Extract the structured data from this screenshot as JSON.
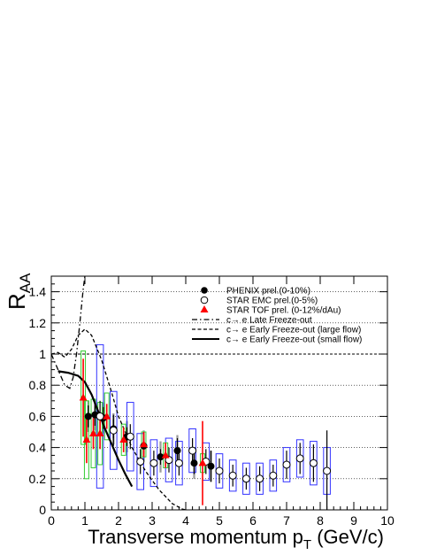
{
  "chart_data": {
    "type": "scatter",
    "title": "",
    "xlabel_main": "Transverse momentum p",
    "xlabel_sub": "T",
    "xlabel_unit": " (GeV/c)",
    "ylabel_main": "R",
    "ylabel_sub": "AA",
    "xlim": [
      0,
      10
    ],
    "ylim": [
      0,
      1.5
    ],
    "x_ticks": [
      "0",
      "1",
      "2",
      "3",
      "4",
      "5",
      "6",
      "7",
      "8",
      "9",
      "10"
    ],
    "y_ticks": [
      "0",
      "0.2",
      "0.4",
      "0.6",
      "0.8",
      "1",
      "1.2",
      "1.4"
    ],
    "legend_position": "top-right",
    "legend": [
      {
        "label": "PHENIX prel.(0-10%)",
        "marker": "filled-circle"
      },
      {
        "label": "STAR EMC prel.(0-5%)",
        "marker": "open-circle"
      },
      {
        "label": "STAR TOF prel. (0-12%/dAu)",
        "marker": "red-triangle"
      },
      {
        "label": "c→ e Late Freeze-out",
        "marker": "dash-dot-line"
      },
      {
        "label": "c→ e Early Freeze-out (large flow)",
        "marker": "dashed-line"
      },
      {
        "label": "c→ e Early Freeze-out (small flow)",
        "marker": "solid-line"
      }
    ],
    "series": [
      {
        "name": "PHENIX prel.(0-10%)",
        "color": "#000000",
        "points": [
          {
            "x": 1.1,
            "y": 0.6,
            "err": 0.07,
            "sys": 0.1
          },
          {
            "x": 1.3,
            "y": 0.61,
            "err": 0.07,
            "sys": 0.1
          },
          {
            "x": 1.55,
            "y": 0.59,
            "err": 0.07,
            "sys": 0.1
          },
          {
            "x": 1.85,
            "y": 0.52,
            "err": 0.06,
            "sys": 0.1
          },
          {
            "x": 2.25,
            "y": 0.47,
            "err": 0.06,
            "sys": 0.1
          },
          {
            "x": 2.75,
            "y": 0.41,
            "err": 0.05,
            "sys": 0.1
          },
          {
            "x": 3.25,
            "y": 0.34,
            "err": 0.05,
            "sys": 0.1
          },
          {
            "x": 3.75,
            "y": 0.38,
            "err": 0.08,
            "sys": 0.1
          },
          {
            "x": 4.25,
            "y": 0.3,
            "err": 0.07,
            "sys": 0.1
          },
          {
            "x": 4.75,
            "y": 0.28,
            "err": 0.1,
            "sys": 0.1
          }
        ]
      },
      {
        "name": "STAR EMC prel.(0-5%)",
        "color": "#000000",
        "points": [
          {
            "x": 1.45,
            "y": 0.6,
            "err": 0.1,
            "sys": 0.46
          },
          {
            "x": 1.85,
            "y": 0.51,
            "err": 0.1,
            "sys": 0.25
          },
          {
            "x": 2.35,
            "y": 0.47,
            "err": 0.08,
            "sys": 0.22
          },
          {
            "x": 2.65,
            "y": 0.31,
            "err": 0.08,
            "sys": 0.18
          },
          {
            "x": 3.05,
            "y": 0.3,
            "err": 0.08,
            "sys": 0.15
          },
          {
            "x": 3.5,
            "y": 0.32,
            "err": 0.08,
            "sys": 0.14
          },
          {
            "x": 3.8,
            "y": 0.3,
            "err": 0.08,
            "sys": 0.14
          },
          {
            "x": 4.2,
            "y": 0.38,
            "err": 0.08,
            "sys": 0.14
          },
          {
            "x": 4.6,
            "y": 0.31,
            "err": 0.08,
            "sys": 0.12
          },
          {
            "x": 5.0,
            "y": 0.25,
            "err": 0.08,
            "sys": 0.11
          },
          {
            "x": 5.4,
            "y": 0.22,
            "err": 0.07,
            "sys": 0.1
          },
          {
            "x": 5.8,
            "y": 0.2,
            "err": 0.07,
            "sys": 0.1
          },
          {
            "x": 6.2,
            "y": 0.2,
            "err": 0.08,
            "sys": 0.1
          },
          {
            "x": 6.6,
            "y": 0.22,
            "err": 0.07,
            "sys": 0.1
          },
          {
            "x": 7.0,
            "y": 0.29,
            "err": 0.09,
            "sys": 0.11
          },
          {
            "x": 7.4,
            "y": 0.33,
            "err": 0.1,
            "sys": 0.12
          },
          {
            "x": 7.8,
            "y": 0.3,
            "err": 0.12,
            "sys": 0.14
          },
          {
            "x": 8.2,
            "y": 0.25,
            "err": 0.26,
            "sys": 0.15
          }
        ]
      },
      {
        "name": "STAR TOF prel. (0-12%/dAu)",
        "color": "#ff0000",
        "points": [
          {
            "x": 0.95,
            "y": 0.72,
            "err": 0.25,
            "sys": 0.3
          },
          {
            "x": 1.05,
            "y": 0.45,
            "err": 0.15,
            "sys": 0.25
          },
          {
            "x": 1.25,
            "y": 0.49,
            "err": 0.1,
            "sys": 0.22
          },
          {
            "x": 1.45,
            "y": 0.49,
            "err": 0.1,
            "sys": 0.2
          },
          {
            "x": 1.65,
            "y": 0.6,
            "err": 0.08,
            "sys": 0.15
          },
          {
            "x": 2.15,
            "y": 0.45,
            "err": 0.08,
            "sys": 0.1
          },
          {
            "x": 2.75,
            "y": 0.42,
            "err": 0.08,
            "sys": 0.08
          },
          {
            "x": 3.4,
            "y": 0.35,
            "err": 0.08,
            "sys": 0.08
          },
          {
            "x": 4.5,
            "y": 0.3,
            "err": 0.27,
            "sys": 0.06
          }
        ]
      }
    ],
    "curves": [
      {
        "name": "c→ e Late Freeze-out",
        "style": "dash-dot",
        "x": [
          0,
          0.2,
          0.4,
          0.55,
          0.65,
          0.75,
          0.85,
          0.95,
          1.0
        ],
        "y": [
          1.0,
          0.9,
          0.8,
          0.78,
          0.85,
          1.0,
          1.2,
          1.42,
          1.5
        ]
      },
      {
        "name": "c→ e Early Freeze-out (large flow)",
        "style": "dashed",
        "x": [
          0,
          0.2,
          0.4,
          0.6,
          0.8,
          1.0,
          1.2,
          1.5,
          1.8,
          2.0,
          2.4,
          2.8,
          3.2,
          3.6,
          3.9,
          4.0
        ],
        "y": [
          1.0,
          1.01,
          0.98,
          1.03,
          1.12,
          1.16,
          1.12,
          0.96,
          0.75,
          0.6,
          0.4,
          0.25,
          0.13,
          0.04,
          0.005,
          0
        ]
      },
      {
        "name": "c→ e Early Freeze-out (small flow)",
        "style": "solid",
        "x": [
          0.2,
          0.5,
          0.8,
          1.0,
          1.2,
          1.4,
          1.6,
          1.8,
          2.0,
          2.2,
          2.4
        ],
        "y": [
          0.89,
          0.88,
          0.86,
          0.82,
          0.74,
          0.63,
          0.52,
          0.42,
          0.32,
          0.23,
          0.15
        ]
      }
    ]
  }
}
